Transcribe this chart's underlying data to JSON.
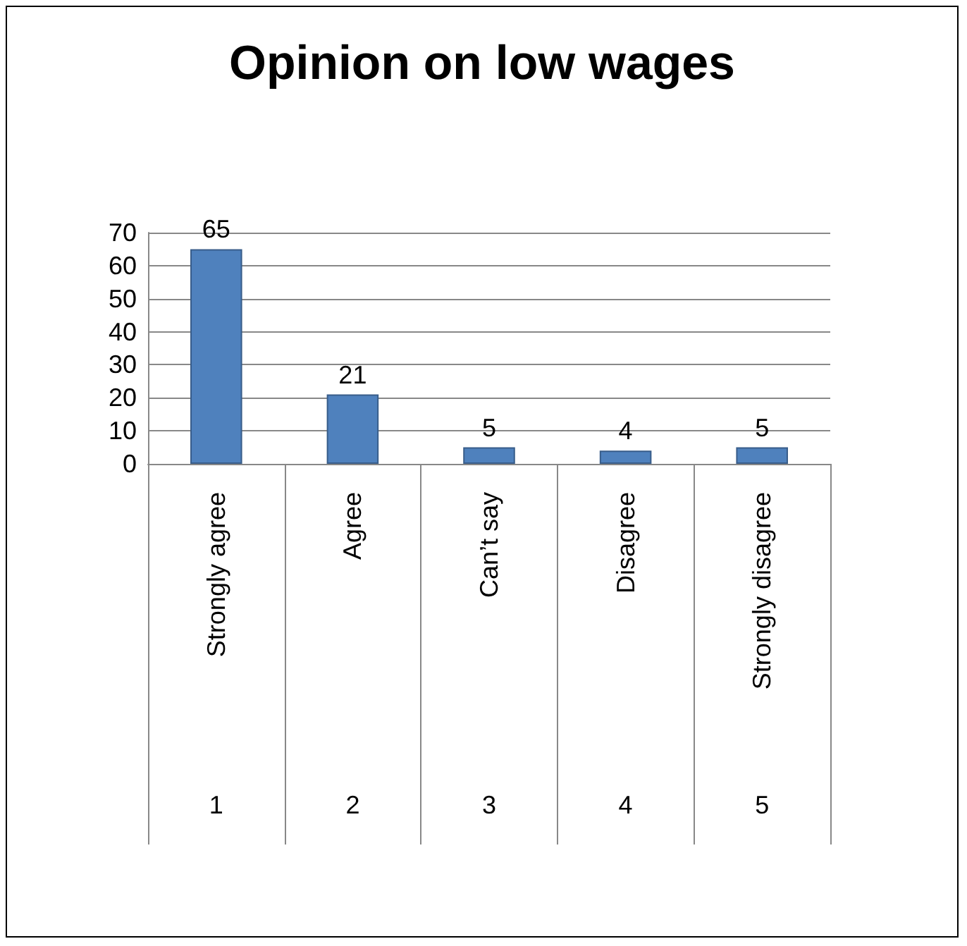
{
  "chart_data": {
    "type": "bar",
    "title": "Opinion on low wages",
    "categories": [
      "Strongly agree",
      "Agree",
      "Can’t say",
      "Disagree",
      "Strongly disagree"
    ],
    "values": [
      65,
      21,
      5,
      4,
      5
    ],
    "color": "#4f81bd",
    "ylim": [
      0,
      70
    ],
    "yticks": [
      0,
      10,
      20,
      30,
      40,
      50,
      60,
      70
    ],
    "grid": "y",
    "data_labels": true,
    "annotations": [
      "1",
      "2",
      "3",
      "4",
      "5"
    ]
  }
}
